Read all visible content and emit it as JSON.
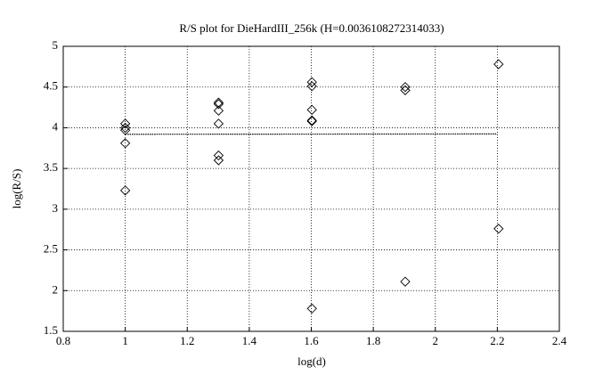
{
  "chart_data": {
    "type": "scatter",
    "title": "R/S plot for DieHardIII_256k (H=0.0036108272314033)",
    "x_label": "log(d)",
    "y_label": "log(R/S)",
    "xlim": [
      0.8,
      2.4
    ],
    "xticks": [
      0.8,
      1,
      1.2,
      1.4,
      1.6,
      1.8,
      2,
      2.2,
      2.4
    ],
    "ylim": [
      1.5,
      5
    ],
    "yticks": [
      1.5,
      2,
      2.5,
      3,
      3.5,
      4,
      4.5,
      5
    ],
    "grid": true,
    "color": "#000000",
    "x": [
      1,
      1,
      1,
      1,
      1,
      1.301,
      1.301,
      1.301,
      1.301,
      1.301,
      1.301,
      1.602,
      1.602,
      1.602,
      1.602,
      1.602,
      1.602,
      1.903,
      1.903,
      1.903,
      2.204,
      2.204
    ],
    "values": [
      4.05,
      4.0,
      3.97,
      3.81,
      3.23,
      4.31,
      4.29,
      4.21,
      4.05,
      3.66,
      3.6,
      4.56,
      4.51,
      4.22,
      4.09,
      4.08,
      1.78,
      4.5,
      4.46,
      2.11,
      4.78,
      2.76
    ],
    "fit_line": {
      "x": [
        1,
        2.2
      ],
      "y": [
        3.92,
        3.924
      ]
    }
  }
}
